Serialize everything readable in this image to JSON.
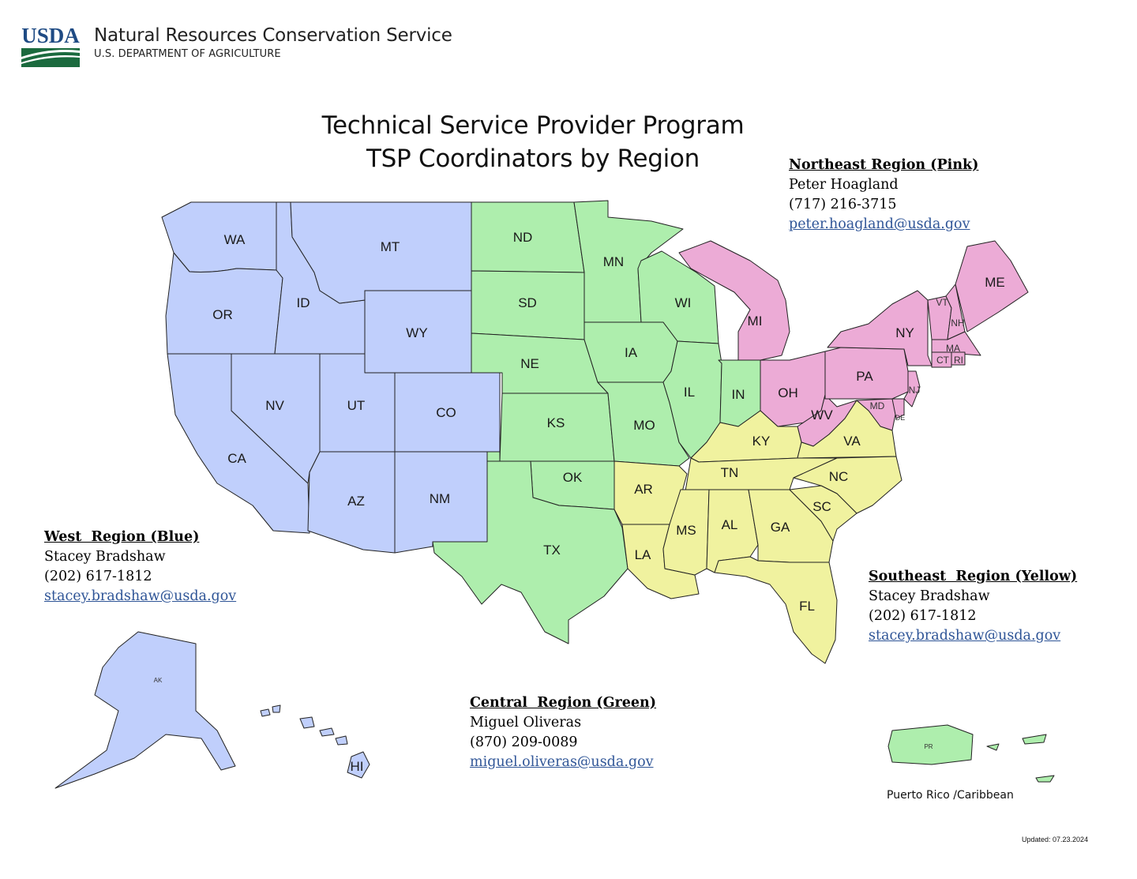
{
  "header": {
    "logo_text": "USDA",
    "agency_name": "Natural Resources Conservation Service",
    "department": "U.S. DEPARTMENT OF AGRICULTURE"
  },
  "title": {
    "line1": "Technical Service Provider Program",
    "line2": "TSP Coordinators by Region"
  },
  "colors": {
    "west": "#c0cffc",
    "central": "#aeeead",
    "northeast": "#ecabd6",
    "southeast": "#f0f29f",
    "email_link": "#2f5597"
  },
  "regions": {
    "northeast": {
      "name": "Northeast Region (Pink)",
      "contact": "Peter Hoagland",
      "phone": "(717) 216-3715",
      "email": "peter.hoagland@usda.gov"
    },
    "west": {
      "name": "West  Region (Blue)",
      "contact": "Stacey Bradshaw",
      "phone": "(202) 617-1812",
      "email": "stacey.bradshaw@usda.gov"
    },
    "southeast": {
      "name": "Southeast  Region (Yellow)",
      "contact": "Stacey Bradshaw",
      "phone": "(202) 617-1812",
      "email": "stacey.bradshaw@usda.gov"
    },
    "central": {
      "name": "Central  Region (Green)",
      "contact": "Miguel Oliveras",
      "phone": "(870) 209-0089",
      "email": "miguel.oliveras@usda.gov"
    }
  },
  "states": {
    "WA": "WA",
    "OR": "OR",
    "CA": "CA",
    "ID": "ID",
    "NV": "NV",
    "MT": "MT",
    "WY": "WY",
    "UT": "UT",
    "CO": "CO",
    "AZ": "AZ",
    "NM": "NM",
    "AK": "AK",
    "HI": "HI",
    "ND": "ND",
    "SD": "SD",
    "NE": "NE",
    "KS": "KS",
    "OK": "OK",
    "TX": "TX",
    "MN": "MN",
    "IA": "IA",
    "MO": "MO",
    "WI": "WI",
    "IL": "IL",
    "IN": "IN",
    "PR": "PR",
    "MI": "MI",
    "OH": "OH",
    "WV": "WV",
    "PA": "PA",
    "NY": "NY",
    "VT": "VT",
    "NH": "NH",
    "ME": "ME",
    "MA": "MA",
    "CT": "CT",
    "RI": "RI",
    "NJ": "NJ",
    "MD": "MD",
    "DE": "DE",
    "KY": "KY",
    "VA": "VA",
    "TN": "TN",
    "NC": "NC",
    "AR": "AR",
    "SC": "SC",
    "GA": "GA",
    "AL": "AL",
    "MS": "MS",
    "LA": "LA",
    "FL": "FL"
  },
  "pr_caption": "Puerto Rico /Caribbean",
  "updated": "Updated: 07.23.2024"
}
